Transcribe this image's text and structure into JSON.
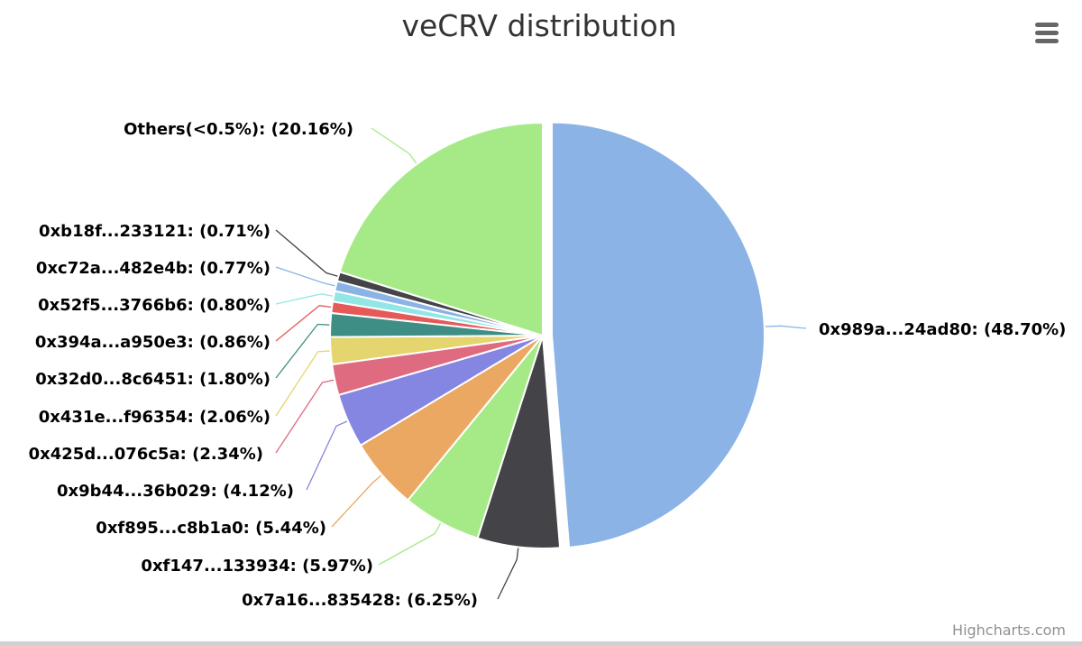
{
  "chart_data": {
    "type": "pie",
    "title": "veCRV distribution",
    "slices": [
      {
        "label": "0x989a...24ad80",
        "percent": 48.7,
        "color": "#8bb3e6"
      },
      {
        "label": "0x7a16...835428",
        "percent": 6.25,
        "color": "#434348"
      },
      {
        "label": "0xf147...133934",
        "percent": 5.97,
        "color": "#a5ea87"
      },
      {
        "label": "0xf895...c8b1a0",
        "percent": 5.44,
        "color": "#eaa862"
      },
      {
        "label": "0x9b44...36b029",
        "percent": 4.12,
        "color": "#8585e2"
      },
      {
        "label": "0x425d...076c5a",
        "percent": 2.34,
        "color": "#df6b80"
      },
      {
        "label": "0x431e...f96354",
        "percent": 2.06,
        "color": "#e4d56e"
      },
      {
        "label": "0x32d0...8c6451",
        "percent": 1.8,
        "color": "#3f8e86"
      },
      {
        "label": "0x394a...a950e3",
        "percent": 0.86,
        "color": "#e55959"
      },
      {
        "label": "0x52f5...3766b6",
        "percent": 0.8,
        "color": "#94e6e6"
      },
      {
        "label": "0xc72a...482e4b",
        "percent": 0.77,
        "color": "#8bb3e6"
      },
      {
        "label": "0xb18f...233121",
        "percent": 0.71,
        "color": "#434348"
      },
      {
        "label": "Others(<0.5%)",
        "percent": 20.16,
        "color": "#a5ea87"
      }
    ],
    "label_format": "{label}: ({percent}%)",
    "sliced": "0x989a...24ad80"
  },
  "credits": "Highcharts.com",
  "menu_icon": "hamburger-menu-icon"
}
